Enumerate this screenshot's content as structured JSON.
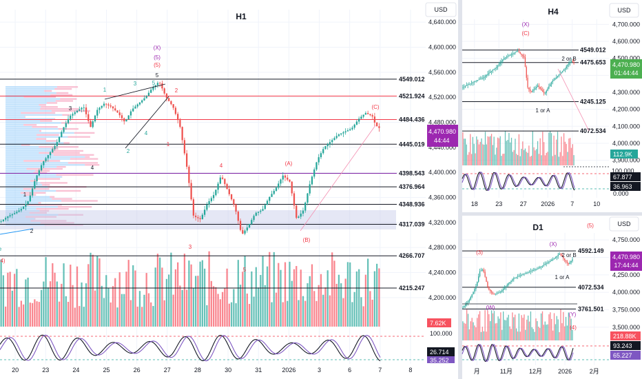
{
  "panels": {
    "h1": {
      "title": "H1",
      "currency": "USD",
      "y_ticks": [
        "4,640.000",
        "4,600.000",
        "4,560.000",
        "4,520.000",
        "4,480.000",
        "4,440.000",
        "4,400.000",
        "4,360.000",
        "4,320.000",
        "4,280.000",
        "4,240.000",
        "4,200.000"
      ],
      "x_ticks": [
        "20",
        "23",
        "24",
        "25",
        "26",
        "27",
        "28",
        "30",
        "31",
        "2026",
        "3",
        "6",
        "7",
        "8"
      ],
      "levels": [
        {
          "label": "4549.012",
          "color": "#131722"
        },
        {
          "label": "4521.924",
          "color": "#f23645"
        },
        {
          "label": "4484.436",
          "color": "#f23645"
        },
        {
          "label": "4445.019",
          "color": "#131722"
        },
        {
          "label": "4398.543",
          "color": "#7b1fa2"
        },
        {
          "label": "4376.964",
          "color": "#131722"
        },
        {
          "label": "4348.936",
          "color": "#131722"
        },
        {
          "label": "4317.039",
          "color": "#131722"
        },
        {
          "label": "4266.707",
          "color": "#131722"
        },
        {
          "label": "4215.247",
          "color": "#131722"
        }
      ],
      "price_tag": {
        "value": "4,470.980",
        "timer": "44:44",
        "color": "#9c27b0"
      },
      "volume_tag": {
        "value": "7.62K",
        "color": "#f7525f"
      },
      "osc_ticks": [
        "100.000"
      ],
      "osc_tags": [
        {
          "value": "26.714",
          "color": "#131722"
        },
        {
          "value": "35.252",
          "color": "#7e57c2"
        }
      ],
      "wave_labels": [
        {
          "text": "(X)",
          "color": "#9c27b0"
        },
        {
          "text": "(5)",
          "color": "#9c27b0"
        },
        {
          "text": "(5)",
          "color": "#f23645"
        },
        {
          "text": "5",
          "color": "#131722"
        },
        {
          "text": "2",
          "color": "#f23645"
        },
        {
          "text": "1",
          "color": "#26a69a"
        },
        {
          "text": "3",
          "color": "#26a69a"
        },
        {
          "text": "5",
          "color": "#26a69a"
        },
        {
          "text": "3",
          "color": "#131722"
        },
        {
          "text": "4",
          "color": "#131722"
        },
        {
          "text": "2",
          "color": "#26a69a"
        },
        {
          "text": "4",
          "color": "#26a69a"
        },
        {
          "text": "1",
          "color": "#f23645"
        },
        {
          "text": "4",
          "color": "#f23645"
        },
        {
          "text": "(A)",
          "color": "#f23645"
        },
        {
          "text": "(C)",
          "color": "#f23645"
        },
        {
          "text": "1",
          "color": "#131722"
        },
        {
          "text": "2",
          "color": "#131722"
        },
        {
          "text": "3",
          "color": "#f23645"
        },
        {
          "text": "5",
          "color": "#f23645"
        },
        {
          "text": "(B)",
          "color": "#f23645"
        },
        {
          "text": "e",
          "color": "#26a69a"
        },
        {
          "text": "4)",
          "color": "#f23645"
        }
      ]
    },
    "h4": {
      "title": "H4",
      "currency": "USD",
      "y_ticks": [
        "4,700.000",
        "4,600.000",
        "4,500.000",
        "4,400.000",
        "4,300.000",
        "4,200.000",
        "4,100.000",
        "4,000.000",
        "3,900.000"
      ],
      "x_ticks": [
        "18",
        "23",
        "27",
        "2026",
        "7",
        "10"
      ],
      "levels": [
        {
          "label": "4549.012"
        },
        {
          "label": "4475.653"
        },
        {
          "label": "4245.125"
        },
        {
          "label": "4072.534"
        }
      ],
      "price_tag": {
        "value": "4,470.980",
        "timer": "01:44:44",
        "color": "#4caf50"
      },
      "volume_tag": {
        "value": "112.9K",
        "color": "#26a69a"
      },
      "osc_ticks": [
        "100.000",
        "0.000"
      ],
      "osc_tags": [
        {
          "value": "67.877",
          "color": "#131722"
        },
        {
          "value": "36.963",
          "color": "#131722"
        }
      ],
      "wave_labels": [
        {
          "text": "(X)",
          "color": "#9c27b0"
        },
        {
          "text": "(C)",
          "color": "#f23645"
        },
        {
          "text": "2 or B",
          "color": "#131722"
        },
        {
          "text": "1 or A",
          "color": "#131722"
        }
      ]
    },
    "d1": {
      "title": "D1",
      "currency": "USD",
      "y_ticks": [
        "4,750.000",
        "4,500.000",
        "4,250.000",
        "4,000.000",
        "3,750.000",
        "3,500.000"
      ],
      "x_ticks": [
        "月",
        "11月",
        "12月",
        "2026",
        "2月"
      ],
      "levels": [
        {
          "label": "4592.149"
        },
        {
          "label": "4072.534"
        },
        {
          "label": "3761.501"
        }
      ],
      "price_tag": {
        "value": "4,470.980",
        "timer": "17:44:44",
        "color": "#9c27b0"
      },
      "volume_tag": {
        "value": "218.88K",
        "color": "#f7525f"
      },
      "osc_tags": [
        {
          "value": "93.243",
          "color": "#131722"
        },
        {
          "value": "65.227",
          "color": "#7e57c2"
        }
      ],
      "wave_labels": [
        {
          "text": "(5)",
          "color": "#f23645"
        },
        {
          "text": "(3)",
          "color": "#f23645"
        },
        {
          "text": "(X)",
          "color": "#9c27b0"
        },
        {
          "text": "2 or B",
          "color": "#131722"
        },
        {
          "text": "1 or A",
          "color": "#131722"
        },
        {
          "text": "(W)",
          "color": "#9c27b0"
        },
        {
          "text": "(Y)",
          "color": "#9c27b0"
        },
        {
          "text": "(4)",
          "color": "#f23645"
        }
      ]
    }
  },
  "chart_data": [
    {
      "type": "line",
      "title": "H1",
      "currency": "USD",
      "ylim": [
        4180,
        4660
      ],
      "x_ticks": [
        "20",
        "23",
        "24",
        "25",
        "26",
        "27",
        "28",
        "30",
        "31",
        "2026",
        "3",
        "6",
        "7",
        "8"
      ],
      "close_path": [
        [
          0,
          4322
        ],
        [
          10,
          4330
        ],
        [
          20,
          4335
        ],
        [
          30,
          4342
        ],
        [
          40,
          4355
        ],
        [
          50,
          4390
        ],
        [
          60,
          4415
        ],
        [
          70,
          4430
        ],
        [
          80,
          4445
        ],
        [
          90,
          4470
        ],
        [
          100,
          4490
        ],
        [
          110,
          4498
        ],
        [
          120,
          4505
        ],
        [
          130,
          4472
        ],
        [
          140,
          4500
        ],
        [
          150,
          4510
        ],
        [
          160,
          4505
        ],
        [
          170,
          4495
        ],
        [
          180,
          4480
        ],
        [
          190,
          4500
        ],
        [
          200,
          4510
        ],
        [
          210,
          4520
        ],
        [
          220,
          4535
        ],
        [
          230,
          4545
        ],
        [
          240,
          4520
        ],
        [
          250,
          4505
        ],
        [
          260,
          4475
        ],
        [
          270,
          4410
        ],
        [
          280,
          4330
        ],
        [
          290,
          4325
        ],
        [
          300,
          4350
        ],
        [
          310,
          4365
        ],
        [
          320,
          4395
        ],
        [
          330,
          4370
        ],
        [
          340,
          4345
        ],
        [
          350,
          4300
        ],
        [
          360,
          4315
        ],
        [
          370,
          4335
        ],
        [
          380,
          4340
        ],
        [
          390,
          4360
        ],
        [
          400,
          4375
        ],
        [
          410,
          4395
        ],
        [
          420,
          4385
        ],
        [
          430,
          4325
        ],
        [
          440,
          4340
        ],
        [
          450,
          4385
        ],
        [
          460,
          4420
        ],
        [
          470,
          4440
        ],
        [
          480,
          4450
        ],
        [
          490,
          4460
        ],
        [
          500,
          4465
        ],
        [
          510,
          4470
        ],
        [
          520,
          4485
        ],
        [
          530,
          4495
        ],
        [
          540,
          4490
        ],
        [
          545,
          4475
        ],
        [
          550,
          4471
        ]
      ],
      "last_price": 4470.98
    },
    {
      "type": "line",
      "title": "H4",
      "currency": "USD",
      "ylim": [
        3870,
        4730
      ],
      "x_ticks": [
        "18",
        "23",
        "27",
        "2026",
        "7",
        "10"
      ],
      "close_path": [
        [
          0,
          4330
        ],
        [
          10,
          4350
        ],
        [
          20,
          4370
        ],
        [
          30,
          4385
        ],
        [
          40,
          4420
        ],
        [
          50,
          4450
        ],
        [
          60,
          4500
        ],
        [
          70,
          4520
        ],
        [
          80,
          4545
        ],
        [
          90,
          4505
        ],
        [
          95,
          4330
        ],
        [
          100,
          4300
        ],
        [
          110,
          4340
        ],
        [
          120,
          4290
        ],
        [
          130,
          4360
        ],
        [
          140,
          4400
        ],
        [
          150,
          4440
        ],
        [
          155,
          4470
        ],
        [
          160,
          4485
        ],
        [
          163,
          4471
        ]
      ],
      "last_price": 4470.98
    },
    {
      "type": "line",
      "title": "D1",
      "currency": "USD",
      "ylim": [
        3450,
        4850
      ],
      "x_ticks": [
        "月",
        "11月",
        "12月",
        "2026",
        "2月"
      ],
      "close_path": [
        [
          0,
          3780
        ],
        [
          8,
          3900
        ],
        [
          16,
          4100
        ],
        [
          20,
          4300
        ],
        [
          24,
          4330
        ],
        [
          30,
          4050
        ],
        [
          36,
          3970
        ],
        [
          44,
          4000
        ],
        [
          52,
          4100
        ],
        [
          60,
          4200
        ],
        [
          70,
          4250
        ],
        [
          80,
          4300
        ],
        [
          90,
          4350
        ],
        [
          100,
          4420
        ],
        [
          110,
          4500
        ],
        [
          115,
          4560
        ],
        [
          120,
          4470
        ],
        [
          125,
          4400
        ],
        [
          130,
          4471
        ]
      ],
      "last_price": 4470.98
    }
  ]
}
